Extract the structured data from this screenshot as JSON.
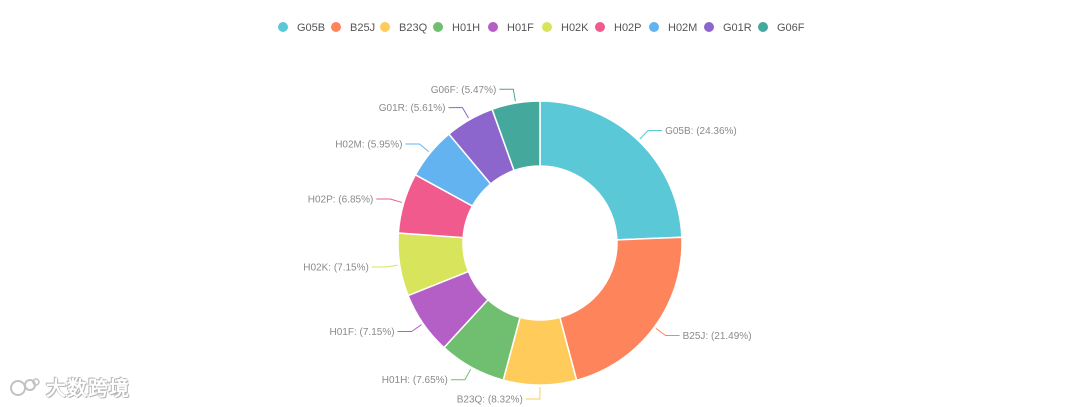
{
  "chart_data": {
    "type": "pie",
    "donut": true,
    "legend_position": "top",
    "categories": [
      "G05B",
      "B25J",
      "B23Q",
      "H01H",
      "H01F",
      "H02K",
      "H02P",
      "H02M",
      "G01R",
      "G06F"
    ],
    "values": [
      24.36,
      21.49,
      8.32,
      7.65,
      7.15,
      7.15,
      6.85,
      5.95,
      5.61,
      5.47
    ],
    "labels": [
      "G05B: (24.36%)",
      "B25J: (21.49%)",
      "B23Q: (8.32%)",
      "H01H: (7.65%)",
      "H01F: (7.15%)",
      "H02K: (7.15%)",
      "H02P: (6.85%)",
      "H02M: (5.95%)",
      "G01R: (5.61%)",
      "G06F: (5.47%)"
    ],
    "colors": [
      "#5bc8d8",
      "#fe845c",
      "#ffcb5a",
      "#70bf70",
      "#b45fc6",
      "#d8e45c",
      "#f05a8c",
      "#63b3f0",
      "#8c66cc",
      "#45a89c"
    ]
  },
  "watermark": {
    "text": "大数跨境",
    "icon": "logo-icon"
  }
}
